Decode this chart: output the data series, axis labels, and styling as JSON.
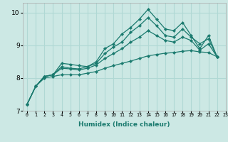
{
  "xlabel": "Humidex (Indice chaleur)",
  "background_color": "#cce8e4",
  "grid_color": "#b0d8d4",
  "line_color": "#1a7a6e",
  "xlim": [
    -0.5,
    23
  ],
  "ylim": [
    7,
    10.3
  ],
  "yticks": [
    7,
    8,
    9,
    10
  ],
  "xticks": [
    0,
    1,
    2,
    3,
    4,
    5,
    6,
    7,
    8,
    9,
    10,
    11,
    12,
    13,
    14,
    15,
    16,
    17,
    18,
    19,
    20,
    21,
    22,
    23
  ],
  "series": [
    [
      7.2,
      7.75,
      8.05,
      8.1,
      8.45,
      8.42,
      8.38,
      8.35,
      8.5,
      8.9,
      9.05,
      9.35,
      9.55,
      9.8,
      10.1,
      9.8,
      9.5,
      9.45,
      9.7,
      9.3,
      8.9,
      9.3,
      8.65
    ],
    [
      7.2,
      7.75,
      8.05,
      8.1,
      8.35,
      8.3,
      8.28,
      8.35,
      8.45,
      8.75,
      8.95,
      9.1,
      9.4,
      9.6,
      9.85,
      9.6,
      9.3,
      9.25,
      9.5,
      9.25,
      9.05,
      9.2,
      8.65
    ],
    [
      7.2,
      7.75,
      8.05,
      8.1,
      8.3,
      8.28,
      8.25,
      8.3,
      8.4,
      8.6,
      8.75,
      8.9,
      9.1,
      9.25,
      9.45,
      9.3,
      9.15,
      9.1,
      9.25,
      9.15,
      8.85,
      9.05,
      8.65
    ],
    [
      7.2,
      7.75,
      8.0,
      8.05,
      8.1,
      8.1,
      8.1,
      8.15,
      8.2,
      8.3,
      8.38,
      8.45,
      8.52,
      8.6,
      8.68,
      8.72,
      8.76,
      8.78,
      8.82,
      8.84,
      8.8,
      8.78,
      8.65
    ]
  ],
  "marker": "D",
  "markersize": 2.2,
  "linewidth": 0.9
}
